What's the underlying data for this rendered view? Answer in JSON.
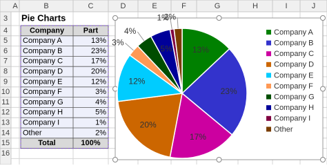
{
  "sheet": {
    "columns": [
      "A",
      "B",
      "C",
      "D",
      "E",
      "F",
      "G",
      "H",
      "I",
      "J"
    ],
    "rows": [
      3,
      4,
      5,
      6,
      7,
      8,
      9,
      10,
      11,
      12,
      13,
      14,
      15,
      16
    ],
    "title": "Pie Charts",
    "table": {
      "header": [
        "Company",
        "Part"
      ],
      "total": [
        "Total",
        "100%"
      ]
    }
  },
  "chart_data": {
    "type": "pie",
    "categories": [
      "Company A",
      "Company B",
      "Company C",
      "Company D",
      "Company E",
      "Company F",
      "Company G",
      "Company H",
      "Company I",
      "Other"
    ],
    "values": [
      13,
      23,
      17,
      20,
      12,
      3,
      4,
      5,
      1,
      2
    ],
    "value_labels": [
      "13%",
      "23%",
      "17%",
      "20%",
      "12%",
      "3%",
      "4%",
      "5%",
      "1%",
      "2%"
    ],
    "colors": [
      "#008000",
      "#3333cc",
      "#cc00a0",
      "#cc6600",
      "#00ccff",
      "#ff9955",
      "#004d00",
      "#000099",
      "#800040",
      "#7a3d00"
    ],
    "legend": "right"
  }
}
